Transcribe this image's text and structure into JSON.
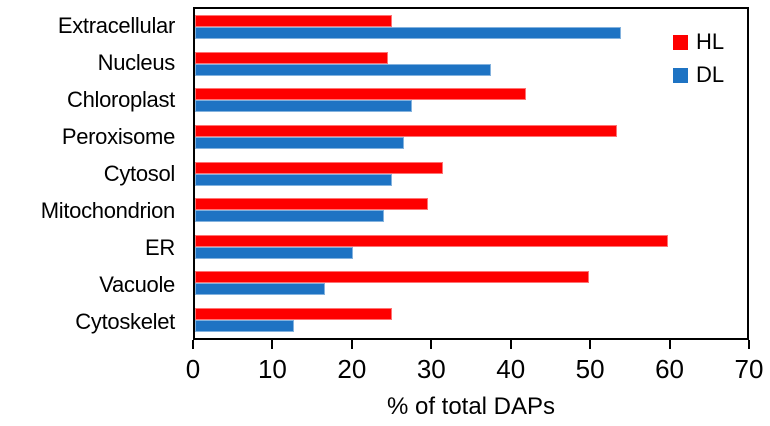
{
  "chart_data": {
    "type": "bar",
    "orientation": "horizontal",
    "xlabel": "% of total DAPs",
    "xlim": [
      0,
      70
    ],
    "xticks": [
      0,
      10,
      20,
      30,
      40,
      50,
      60,
      70
    ],
    "grid": false,
    "legend_position": "top-right-inside",
    "axis_color": "#000000",
    "categories": [
      "Extracellular",
      "Nucleus",
      "Chloroplast",
      "Peroxisome",
      "Cytosol",
      "Mitochondrion",
      "ER",
      "Vacuole",
      "Cytoskelet"
    ],
    "series": [
      {
        "name": "HL",
        "color": "#FE0000",
        "values": [
          25,
          24.5,
          42,
          53.5,
          31.5,
          29.5,
          60,
          50,
          25
        ]
      },
      {
        "name": "DL",
        "color": "#1E73C3",
        "values": [
          54,
          37.5,
          27.5,
          26.5,
          25,
          24,
          20,
          16.5,
          12.5
        ]
      }
    ]
  }
}
